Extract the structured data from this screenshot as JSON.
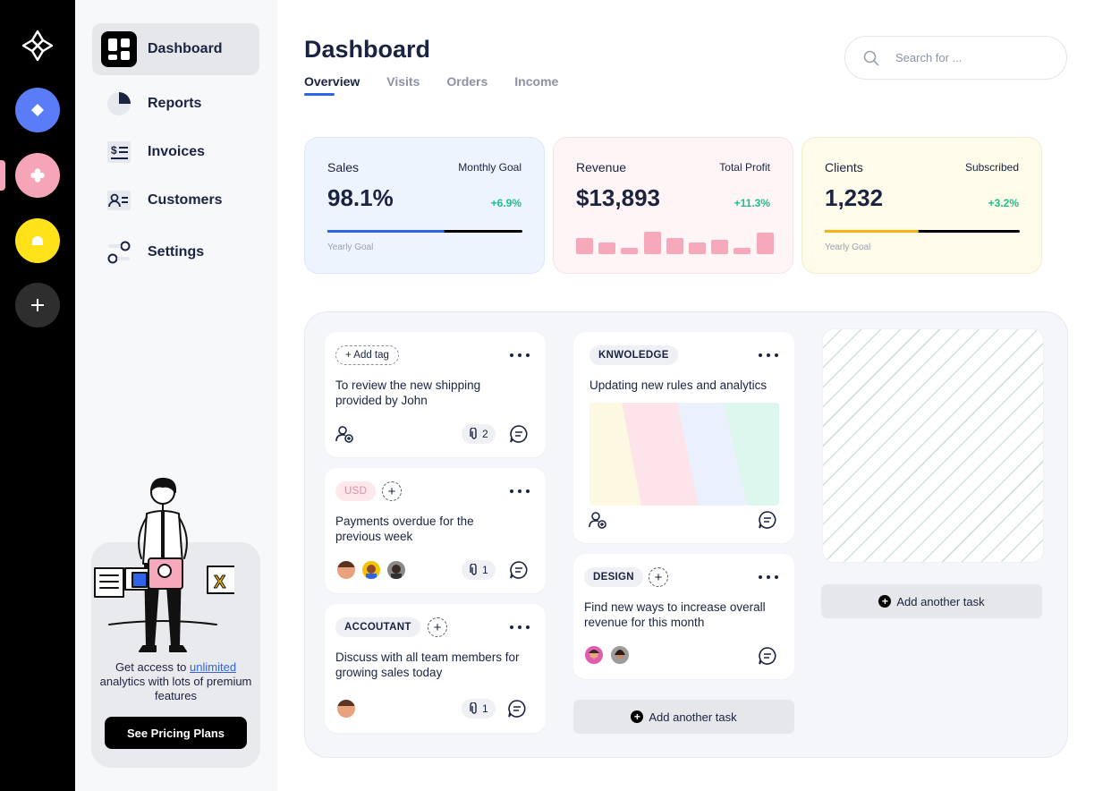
{
  "sidebar": {
    "items": [
      {
        "label": "Dashboard"
      },
      {
        "label": "Reports"
      },
      {
        "label": "Invoices"
      },
      {
        "label": "Customers"
      },
      {
        "label": "Settings"
      }
    ],
    "promo": {
      "text_before": "Get access to ",
      "link": "unlimited",
      "text_after": " analytics with lots of premium features",
      "button": "See Pricing Plans"
    }
  },
  "header": {
    "title": "Dashboard",
    "tabs": [
      "Overview",
      "Visits",
      "Orders",
      "Income"
    ],
    "active_tab": "Overview",
    "search_placeholder": "Search for ..."
  },
  "stats": {
    "sales": {
      "title": "Sales",
      "sub": "Monthly Goal",
      "value": "98.1%",
      "change": "+6.9%",
      "foot": "Yearly Goal",
      "progress": 0.6
    },
    "revenue": {
      "title": "Revenue",
      "sub": "Total Profit",
      "value": "$13,893",
      "change": "+11.3%",
      "bars": [
        0.55,
        0.4,
        0.22,
        0.78,
        0.55,
        0.4,
        0.5,
        0.22,
        0.75
      ]
    },
    "clients": {
      "title": "Clients",
      "sub": "Subscribed",
      "value": "1,232",
      "change": "+3.2%",
      "foot": "Yearly Goal",
      "progress": 0.48
    }
  },
  "board": {
    "col1": [
      {
        "tag": "+ Add tag",
        "text": "To review the new shipping provided by John",
        "attachments": "2"
      },
      {
        "tag": "USD",
        "text": "Payments overdue for the previous week",
        "attachments": "1"
      },
      {
        "tag": "ACCOUTANT",
        "text": "Discuss with all team members for growing sales today",
        "attachments": "1"
      }
    ],
    "col2": [
      {
        "tag": "KNWOLEDGE",
        "text": "Updating new rules and analytics"
      },
      {
        "tag": "DESIGN",
        "text": "Find new ways to increase overall revenue for this month"
      }
    ],
    "add_task": "Add another task"
  },
  "colors": {
    "accent_blue": "#2f64e8",
    "accent_green": "#1dbf8a",
    "accent_pink": "#f7a9bc",
    "accent_yellow": "#f5b70f"
  }
}
